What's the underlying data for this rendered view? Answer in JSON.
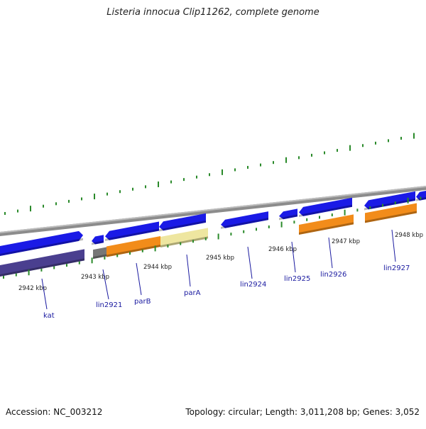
{
  "title": "Listeria innocua Clip11262, complete genome",
  "footer": {
    "accession": "Accession: NC_003212",
    "summary": "Topology: circular; Length: 3,011,208 bp; Genes: 3,052"
  },
  "colors": {
    "backbone": "#8c8c8c",
    "forward_gene": "#1a1ae6",
    "orange_feature": "#f28c1a",
    "khaki_feature": "#eee6a0",
    "gray_feature": "#777777",
    "purple_feature": "#4a3f8f",
    "tick": "#2a8a2a",
    "label": "#1a1aa0",
    "kbp_text": "#222222"
  },
  "scale": {
    "labels": [
      "2942 kbp",
      "2943 kbp",
      "2944 kbp",
      "2945 kbp",
      "2946 kbp",
      "2947 kbp",
      "2948 kbp"
    ]
  },
  "genes": [
    "kat",
    "lin2921",
    "parB",
    "parA",
    "lin2924",
    "lin2925",
    "lin2926",
    "lin2927"
  ]
}
